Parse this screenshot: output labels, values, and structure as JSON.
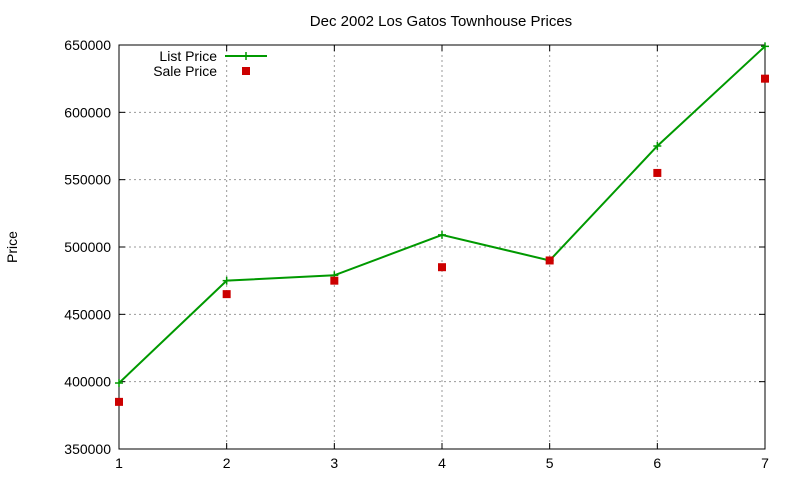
{
  "chart_data": {
    "type": "line",
    "title": "Dec 2002 Los Gatos Townhouse Prices",
    "xlabel": "",
    "ylabel": "Price",
    "x": [
      1,
      2,
      3,
      4,
      5,
      6,
      7
    ],
    "xlim": [
      1,
      7
    ],
    "ylim": [
      350000,
      650000
    ],
    "xticks": [
      1,
      2,
      3,
      4,
      5,
      6,
      7
    ],
    "yticks": [
      350000,
      400000,
      450000,
      500000,
      550000,
      600000,
      650000
    ],
    "grid": true,
    "legend_position": "top-left",
    "series": [
      {
        "name": "List Price",
        "style": "line-with-plus-markers",
        "color": "#009900",
        "values": [
          399000,
          475000,
          479000,
          509000,
          490000,
          575000,
          649000
        ]
      },
      {
        "name": "Sale Price",
        "style": "square-points",
        "color": "#cc0000",
        "values": [
          385000,
          465000,
          475000,
          485000,
          490000,
          555000,
          625000
        ]
      }
    ]
  }
}
